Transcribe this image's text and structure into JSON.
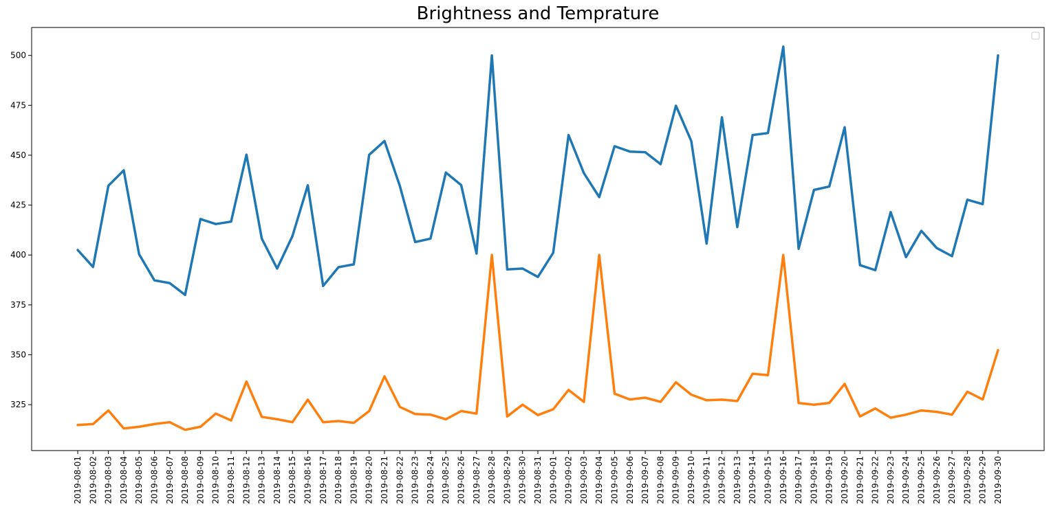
{
  "chart_data": {
    "type": "line",
    "title": "Brightness and Temprature",
    "xlabel": "",
    "ylabel": "",
    "ylim": [
      302,
      514
    ],
    "yticks": [
      325,
      350,
      375,
      400,
      425,
      450,
      475,
      500
    ],
    "grid": false,
    "legend": {
      "placement": "top-right",
      "entries": []
    },
    "x": [
      "2019-08-01",
      "2019-08-02",
      "2019-08-03",
      "2019-08-04",
      "2019-08-05",
      "2019-08-06",
      "2019-08-07",
      "2019-08-08",
      "2019-08-09",
      "2019-08-10",
      "2019-08-11",
      "2019-08-12",
      "2019-08-13",
      "2019-08-14",
      "2019-08-15",
      "2019-08-16",
      "2019-08-17",
      "2019-08-18",
      "2019-08-19",
      "2019-08-20",
      "2019-08-21",
      "2019-08-22",
      "2019-08-23",
      "2019-08-24",
      "2019-08-25",
      "2019-08-26",
      "2019-08-27",
      "2019-08-28",
      "2019-08-29",
      "2019-08-30",
      "2019-08-31",
      "2019-09-01",
      "2019-09-02",
      "2019-09-03",
      "2019-09-04",
      "2019-09-05",
      "2019-09-06",
      "2019-09-07",
      "2019-09-08",
      "2019-09-09",
      "2019-09-10",
      "2019-09-11",
      "2019-09-12",
      "2019-09-13",
      "2019-09-14",
      "2019-09-15",
      "2019-09-16",
      "2019-09-17",
      "2019-09-18",
      "2019-09-19",
      "2019-09-20",
      "2019-09-21",
      "2019-09-22",
      "2019-09-23",
      "2019-09-24",
      "2019-09-25",
      "2019-09-26",
      "2019-09-27",
      "2019-09-28",
      "2019-09-29",
      "2019-09-30"
    ],
    "series": [
      {
        "color": "#1f77b4",
        "values": [
          402.5,
          394,
          434.7,
          442.4,
          400.4,
          387.3,
          385.9,
          380,
          418,
          415.5,
          416.7,
          450.3,
          408.2,
          393.2,
          409.5,
          434.9,
          384.5,
          393.9,
          395.3,
          450.2,
          457.1,
          434.6,
          406.5,
          408.2,
          441.3,
          435,
          400.7,
          500,
          392.8,
          393.2,
          389,
          401.1,
          460.1,
          441,
          429,
          454.5,
          451.8,
          451.5,
          445.5,
          474.8,
          457.1,
          405.7,
          469,
          414,
          460.1,
          461.1,
          504.4,
          403.1,
          432.6,
          434.3,
          464,
          394.9,
          392.4,
          421.5,
          398.9,
          412.1,
          403.5,
          399.4,
          427.7,
          425.5,
          500
        ]
      },
      {
        "color": "#ff7f0e",
        "values": [
          314.8,
          315.3,
          322.1,
          313.1,
          313.9,
          315.3,
          316.2,
          312.4,
          313.9,
          320.5,
          317.1,
          336.6,
          318.9,
          317.7,
          316.2,
          327.5,
          316.2,
          316.8,
          315.9,
          321.8,
          339.2,
          323.9,
          320.3,
          320,
          317.7,
          321.8,
          320.5,
          400,
          319.1,
          325,
          319.8,
          322.7,
          332.4,
          326.4,
          400,
          330.5,
          327.6,
          328.5,
          326.4,
          336.2,
          330,
          327.2,
          327.5,
          326.8,
          340.5,
          339.8,
          400,
          325.8,
          325,
          325.9,
          335.4,
          319.1,
          323.1,
          318.5,
          320,
          322.1,
          321.4,
          320,
          331.5,
          327.6,
          352.3
        ]
      }
    ]
  }
}
